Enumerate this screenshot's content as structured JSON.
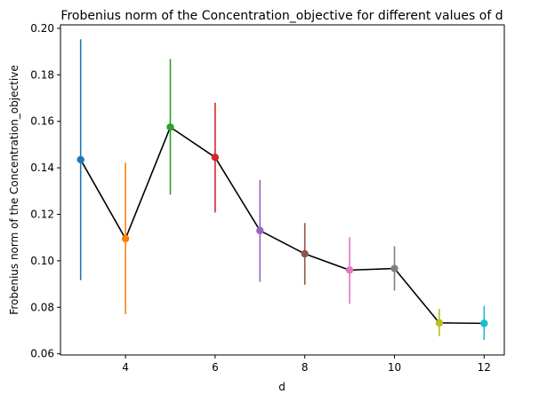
{
  "chart_data": {
    "type": "line",
    "title": "Frobenius norm of the Concentration_objective for different values of d",
    "xlabel": "d",
    "ylabel": "Frobenius norm of the Concentration_objective",
    "xlim": [
      2.55,
      12.45
    ],
    "ylim": [
      0.0595,
      0.2015
    ],
    "x_ticks": [
      4,
      6,
      8,
      10,
      12
    ],
    "y_ticks": [
      0.06,
      0.08,
      0.1,
      0.12,
      0.14,
      0.16,
      0.18,
      0.2
    ],
    "x_tick_labels": [
      "4",
      "6",
      "8",
      "10",
      "12"
    ],
    "y_tick_labels": [
      "0.06",
      "0.08",
      "0.10",
      "0.12",
      "0.14",
      "0.16",
      "0.18",
      "0.20"
    ],
    "grid": false,
    "line_color": "#000000",
    "points": [
      {
        "x": 3,
        "y": 0.1435,
        "ymin": 0.0917,
        "ymax": 0.1953,
        "color": "#1f77b4"
      },
      {
        "x": 4,
        "y": 0.1095,
        "ymin": 0.077,
        "ymax": 0.1422,
        "color": "#ff7f0e"
      },
      {
        "x": 5,
        "y": 0.1575,
        "ymin": 0.1285,
        "ymax": 0.1868,
        "color": "#2ca02c"
      },
      {
        "x": 6,
        "y": 0.1445,
        "ymin": 0.1208,
        "ymax": 0.168,
        "color": "#d62728"
      },
      {
        "x": 7,
        "y": 0.113,
        "ymin": 0.091,
        "ymax": 0.1348,
        "color": "#9467bd"
      },
      {
        "x": 8,
        "y": 0.103,
        "ymin": 0.0897,
        "ymax": 0.1163,
        "color": "#8c564b"
      },
      {
        "x": 9,
        "y": 0.096,
        "ymin": 0.0815,
        "ymax": 0.1102,
        "color": "#e377c2"
      },
      {
        "x": 10,
        "y": 0.0967,
        "ymin": 0.0872,
        "ymax": 0.1063,
        "color": "#7f7f7f"
      },
      {
        "x": 11,
        "y": 0.0733,
        "ymin": 0.0676,
        "ymax": 0.0793,
        "color": "#bcbd22"
      },
      {
        "x": 12,
        "y": 0.0731,
        "ymin": 0.066,
        "ymax": 0.0806,
        "color": "#17becf"
      }
    ]
  }
}
